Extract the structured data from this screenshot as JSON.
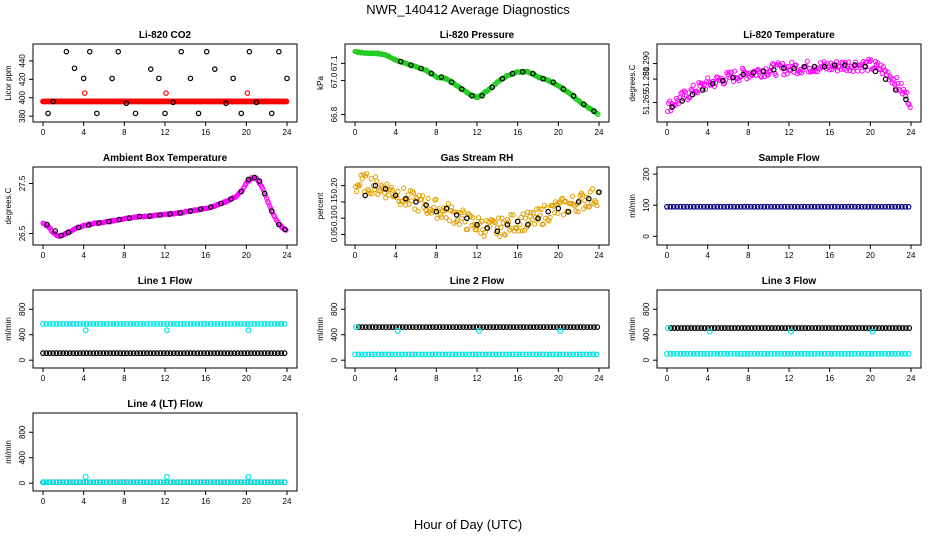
{
  "page": {
    "title": "NWR_140412  Average Diagnostics",
    "xlabel": "Hour of Day (UTC)"
  },
  "colors": {
    "black": "#000000",
    "red": "#ff0000",
    "green": "#22cc22",
    "magenta": "#ff00ff",
    "orange": "#e0a000",
    "navy": "#000080",
    "cyan": "#00e5e5"
  },
  "chart_data": [
    {
      "type": "scatter",
      "title": "Li-820 CO2",
      "ylabel": "Licor ppm",
      "xlabel": "",
      "xticks": [
        "0",
        "4",
        "8",
        "12",
        "16",
        "20",
        "24"
      ],
      "yticks": [
        "380",
        "400",
        "420",
        "440"
      ],
      "xlim": [
        0,
        24
      ],
      "ylim": [
        378,
        454
      ],
      "series": [
        {
          "color": "red",
          "kind": "band",
          "y": [
            396,
            396
          ]
        },
        {
          "color": "black",
          "kind": "points",
          "x": [
            0.5,
            1.0,
            2.3,
            3.1,
            4.0,
            4.6,
            5.3,
            6.8,
            7.4,
            8.2,
            9.1,
            10.6,
            11.4,
            12.0,
            12.8,
            13.6,
            14.5,
            15.3,
            16.1,
            16.9,
            18.0,
            18.7,
            19.5,
            20.3,
            21.0,
            22.5,
            23.2,
            24.0
          ],
          "y": [
            383,
            396,
            450,
            432,
            421,
            450,
            383,
            421,
            450,
            394,
            383,
            431,
            421,
            383,
            395,
            450,
            421,
            383,
            450,
            431,
            394,
            421,
            383,
            450,
            395,
            383,
            450,
            421
          ]
        },
        {
          "color": "red",
          "kind": "points",
          "x": [
            4.1,
            12.1,
            20.1
          ],
          "y": [
            405,
            405,
            405
          ]
        }
      ]
    },
    {
      "type": "line",
      "title": "Li-820 Pressure",
      "ylabel": "kPa",
      "xlabel": "",
      "xticks": [
        "0",
        "4",
        "8",
        "12",
        "16",
        "20",
        "24"
      ],
      "yticks": [
        "66.8",
        "67.0",
        "67.1"
      ],
      "xlim": [
        0,
        24
      ],
      "ylim": [
        66.78,
        67.19
      ],
      "series": [
        {
          "color": "green",
          "kind": "line",
          "x": [
            0,
            1,
            2,
            3,
            4,
            5,
            6,
            7,
            8,
            9,
            10,
            11,
            12,
            13,
            14,
            15,
            16,
            17,
            18,
            19,
            20,
            21,
            22,
            23,
            24
          ],
          "y": [
            67.17,
            67.16,
            67.16,
            67.15,
            67.12,
            67.1,
            67.08,
            67.06,
            67.02,
            67.01,
            66.97,
            66.93,
            66.9,
            66.94,
            66.99,
            67.03,
            67.05,
            67.05,
            67.02,
            67.0,
            66.97,
            66.93,
            66.88,
            66.84,
            66.8
          ]
        },
        {
          "color": "black",
          "kind": "points",
          "x": [
            4.5,
            5.5,
            6.5,
            7.5,
            8.5,
            9.5,
            10.5,
            11.5,
            12.5,
            13.5,
            14.5,
            15.5,
            16.5,
            17.5,
            18.5,
            19.5,
            20.5,
            21.5,
            22.5,
            23.5
          ],
          "y": [
            67.11,
            67.09,
            67.07,
            67.04,
            67.02,
            66.99,
            66.95,
            66.91,
            66.91,
            66.96,
            67.01,
            67.04,
            67.05,
            67.04,
            67.01,
            66.99,
            66.95,
            66.91,
            66.86,
            66.82
          ]
        }
      ]
    },
    {
      "type": "scatter",
      "title": "Li-820 Temperature",
      "ylabel": "degrees.C",
      "xlabel": "",
      "xticks": [
        "0",
        "4",
        "8",
        "12",
        "16",
        "20",
        "24"
      ],
      "yticks": [
        "51.265",
        "51.280",
        "51.290"
      ],
      "xlim": [
        0,
        24
      ],
      "ylim": [
        51.255,
        51.3
      ],
      "series": [
        {
          "color": "magenta",
          "kind": "band",
          "x": [
            0,
            1,
            2,
            3,
            4,
            6,
            8,
            10,
            12,
            14,
            16,
            18,
            20,
            21,
            22,
            23,
            24
          ],
          "y": [
            51.262,
            51.266,
            51.27,
            51.274,
            51.277,
            51.281,
            51.284,
            51.286,
            51.287,
            51.288,
            51.288,
            51.289,
            51.289,
            51.287,
            51.282,
            51.274,
            51.265
          ],
          "spread": 0.008
        },
        {
          "color": "black",
          "kind": "points",
          "x": [
            0.5,
            1.5,
            2.5,
            3.5,
            4.5,
            5.5,
            6.5,
            7.5,
            8.5,
            9.5,
            10.5,
            11.5,
            12.5,
            13.5,
            14.5,
            15.5,
            16.5,
            17.5,
            18.5,
            19.5,
            20.5,
            21.5,
            22.5,
            23.5
          ],
          "y": [
            51.262,
            51.266,
            51.27,
            51.273,
            51.277,
            51.279,
            51.281,
            51.283,
            51.284,
            51.285,
            51.286,
            51.287,
            51.287,
            51.288,
            51.288,
            51.288,
            51.289,
            51.289,
            51.289,
            51.288,
            51.285,
            51.28,
            51.273,
            51.267
          ]
        }
      ]
    },
    {
      "type": "line",
      "title": "Ambient Box Temperature",
      "ylabel": "degrees.C",
      "xlabel": "",
      "xticks": [
        "0",
        "4",
        "8",
        "12",
        "16",
        "20",
        "24"
      ],
      "yticks": [
        "26.5",
        "27.5"
      ],
      "xlim": [
        0,
        24
      ],
      "ylim": [
        26.35,
        27.75
      ],
      "series": [
        {
          "color": "magenta",
          "kind": "line",
          "x": [
            0,
            0.5,
            1,
            1.5,
            2,
            3,
            4,
            5,
            6,
            7,
            8,
            9,
            10,
            11,
            12,
            13,
            14,
            15,
            16,
            17,
            18,
            19,
            19.5,
            20,
            20.5,
            21,
            21.5,
            22,
            22.5,
            23,
            23.5,
            24
          ],
          "y": [
            26.7,
            26.65,
            26.52,
            26.45,
            26.47,
            26.58,
            26.66,
            26.7,
            26.72,
            26.76,
            26.8,
            26.83,
            26.84,
            26.86,
            26.88,
            26.9,
            26.93,
            26.97,
            27.0,
            27.06,
            27.14,
            27.24,
            27.34,
            27.5,
            27.61,
            27.6,
            27.45,
            27.2,
            26.95,
            26.75,
            26.62,
            26.56
          ]
        },
        {
          "color": "black",
          "kind": "points",
          "x": [
            0.4,
            1.2,
            1.8,
            2.5,
            3.5,
            4.5,
            5.5,
            6.5,
            7.5,
            8.5,
            9.5,
            10.5,
            11.5,
            12.5,
            13.5,
            14.5,
            15.5,
            16.5,
            17.5,
            18.5,
            19.5,
            20.2,
            20.8,
            21.3,
            21.8,
            22.5,
            23.2,
            23.8
          ],
          "y": [
            26.68,
            26.55,
            26.46,
            26.52,
            26.62,
            26.67,
            26.71,
            26.74,
            26.78,
            26.81,
            26.84,
            26.85,
            26.87,
            26.89,
            26.91,
            26.95,
            26.99,
            27.03,
            27.1,
            27.19,
            27.34,
            27.58,
            27.62,
            27.55,
            27.3,
            26.95,
            26.68,
            26.58
          ]
        }
      ]
    },
    {
      "type": "scatter",
      "title": "Gas Stream RH",
      "ylabel": "percent",
      "xlabel": "",
      "xticks": [
        "0",
        "4",
        "8",
        "12",
        "16",
        "20",
        "24"
      ],
      "yticks": [
        "0.05",
        "0.10",
        "0.15",
        "0.20"
      ],
      "xlim": [
        0,
        24
      ],
      "ylim": [
        0.03,
        0.245
      ],
      "series": [
        {
          "color": "orange",
          "kind": "band",
          "x": [
            0,
            1,
            2,
            3,
            4,
            5,
            6,
            7,
            8,
            9,
            10,
            11,
            12,
            13,
            14,
            15,
            16,
            17,
            18,
            19,
            20,
            21,
            22,
            23,
            24
          ],
          "y": [
            0.2,
            0.21,
            0.2,
            0.19,
            0.18,
            0.16,
            0.15,
            0.14,
            0.13,
            0.12,
            0.11,
            0.09,
            0.08,
            0.07,
            0.07,
            0.08,
            0.09,
            0.09,
            0.1,
            0.12,
            0.13,
            0.14,
            0.15,
            0.16,
            0.17
          ],
          "spread": 0.06
        },
        {
          "color": "black",
          "kind": "points",
          "x": [
            1.0,
            2.0,
            3.0,
            4.0,
            5.0,
            6.0,
            7.0,
            8.0,
            9.0,
            10.0,
            11.0,
            12.0,
            13.0,
            14.0,
            15.0,
            16.0,
            17.0,
            18.0,
            19.0,
            20.0,
            21.0,
            22.0,
            23.0,
            24.0
          ],
          "y": [
            0.17,
            0.2,
            0.19,
            0.17,
            0.16,
            0.15,
            0.14,
            0.12,
            0.13,
            0.11,
            0.1,
            0.08,
            0.07,
            0.06,
            0.08,
            0.09,
            0.08,
            0.1,
            0.12,
            0.13,
            0.12,
            0.15,
            0.16,
            0.18
          ]
        }
      ]
    },
    {
      "type": "scatter",
      "title": "Sample Flow",
      "ylabel": "ml/min",
      "xlabel": "",
      "xticks": [
        "0",
        "4",
        "8",
        "12",
        "16",
        "20",
        "24"
      ],
      "yticks": [
        "0",
        "100",
        "200"
      ],
      "xlim": [
        0,
        24
      ],
      "ylim": [
        -15,
        210
      ],
      "series": [
        {
          "color": "navy",
          "kind": "points",
          "y": [
            95,
            95
          ]
        }
      ]
    },
    {
      "type": "scatter",
      "title": "Line 1 Flow",
      "ylabel": "ml/min",
      "xlabel": "",
      "xticks": [
        "0",
        "4",
        "8",
        "12",
        "16",
        "20",
        "24"
      ],
      "yticks": [
        "0",
        "400",
        "800"
      ],
      "xlim": [
        0,
        24
      ],
      "ylim": [
        -60,
        1040
      ],
      "series": [
        {
          "color": "cyan",
          "kind": "points",
          "y": [
            570,
            570
          ],
          "dips": [
            [
              4.2,
              470
            ],
            [
              12.2,
              470
            ],
            [
              20.2,
              470
            ]
          ]
        },
        {
          "color": "black",
          "kind": "points",
          "y": [
            110,
            110
          ]
        }
      ]
    },
    {
      "type": "scatter",
      "title": "Line 2 Flow",
      "ylabel": "ml/min",
      "xlabel": "",
      "xticks": [
        "0",
        "4",
        "8",
        "12",
        "16",
        "20",
        "24"
      ],
      "yticks": [
        "0",
        "400",
        "800"
      ],
      "xlim": [
        0,
        24
      ],
      "ylim": [
        -60,
        1040
      ],
      "series": [
        {
          "color": "black",
          "kind": "points",
          "y": [
            520,
            520
          ],
          "from": 0.4
        },
        {
          "color": "cyan",
          "kind": "points",
          "y": [
            90,
            90
          ],
          "dips": [
            [
              0.1,
              520
            ],
            [
              4.2,
              460
            ],
            [
              12.2,
              460
            ],
            [
              20.2,
              460
            ]
          ]
        }
      ]
    },
    {
      "type": "scatter",
      "title": "Line 3 Flow",
      "ylabel": "ml/min",
      "xlabel": "",
      "xticks": [
        "0",
        "4",
        "8",
        "12",
        "16",
        "20",
        "24"
      ],
      "yticks": [
        "0",
        "400",
        "800"
      ],
      "xlim": [
        0,
        24
      ],
      "ylim": [
        -60,
        1040
      ],
      "series": [
        {
          "color": "black",
          "kind": "points",
          "y": [
            505,
            505
          ],
          "from": 0.4
        },
        {
          "color": "cyan",
          "kind": "points",
          "y": [
            100,
            100
          ],
          "dips": [
            [
              0.1,
              505
            ],
            [
              4.2,
              450
            ],
            [
              12.2,
              450
            ],
            [
              20.2,
              450
            ]
          ]
        }
      ]
    },
    {
      "type": "scatter",
      "title": "Line 4 (LT) Flow",
      "ylabel": "ml/min",
      "xlabel": "",
      "xticks": [
        "0",
        "4",
        "8",
        "12",
        "16",
        "20",
        "24"
      ],
      "yticks": [
        "0",
        "400",
        "800"
      ],
      "xlim": [
        0,
        24
      ],
      "ylim": [
        -60,
        1040
      ],
      "series": [
        {
          "color": "black",
          "kind": "points",
          "y": [
            15,
            15
          ]
        },
        {
          "color": "cyan",
          "kind": "points",
          "y": [
            15,
            15
          ],
          "dips": [
            [
              0.1,
              15
            ],
            [
              4.2,
              100
            ],
            [
              12.2,
              100
            ],
            [
              20.2,
              100
            ]
          ]
        }
      ]
    }
  ]
}
